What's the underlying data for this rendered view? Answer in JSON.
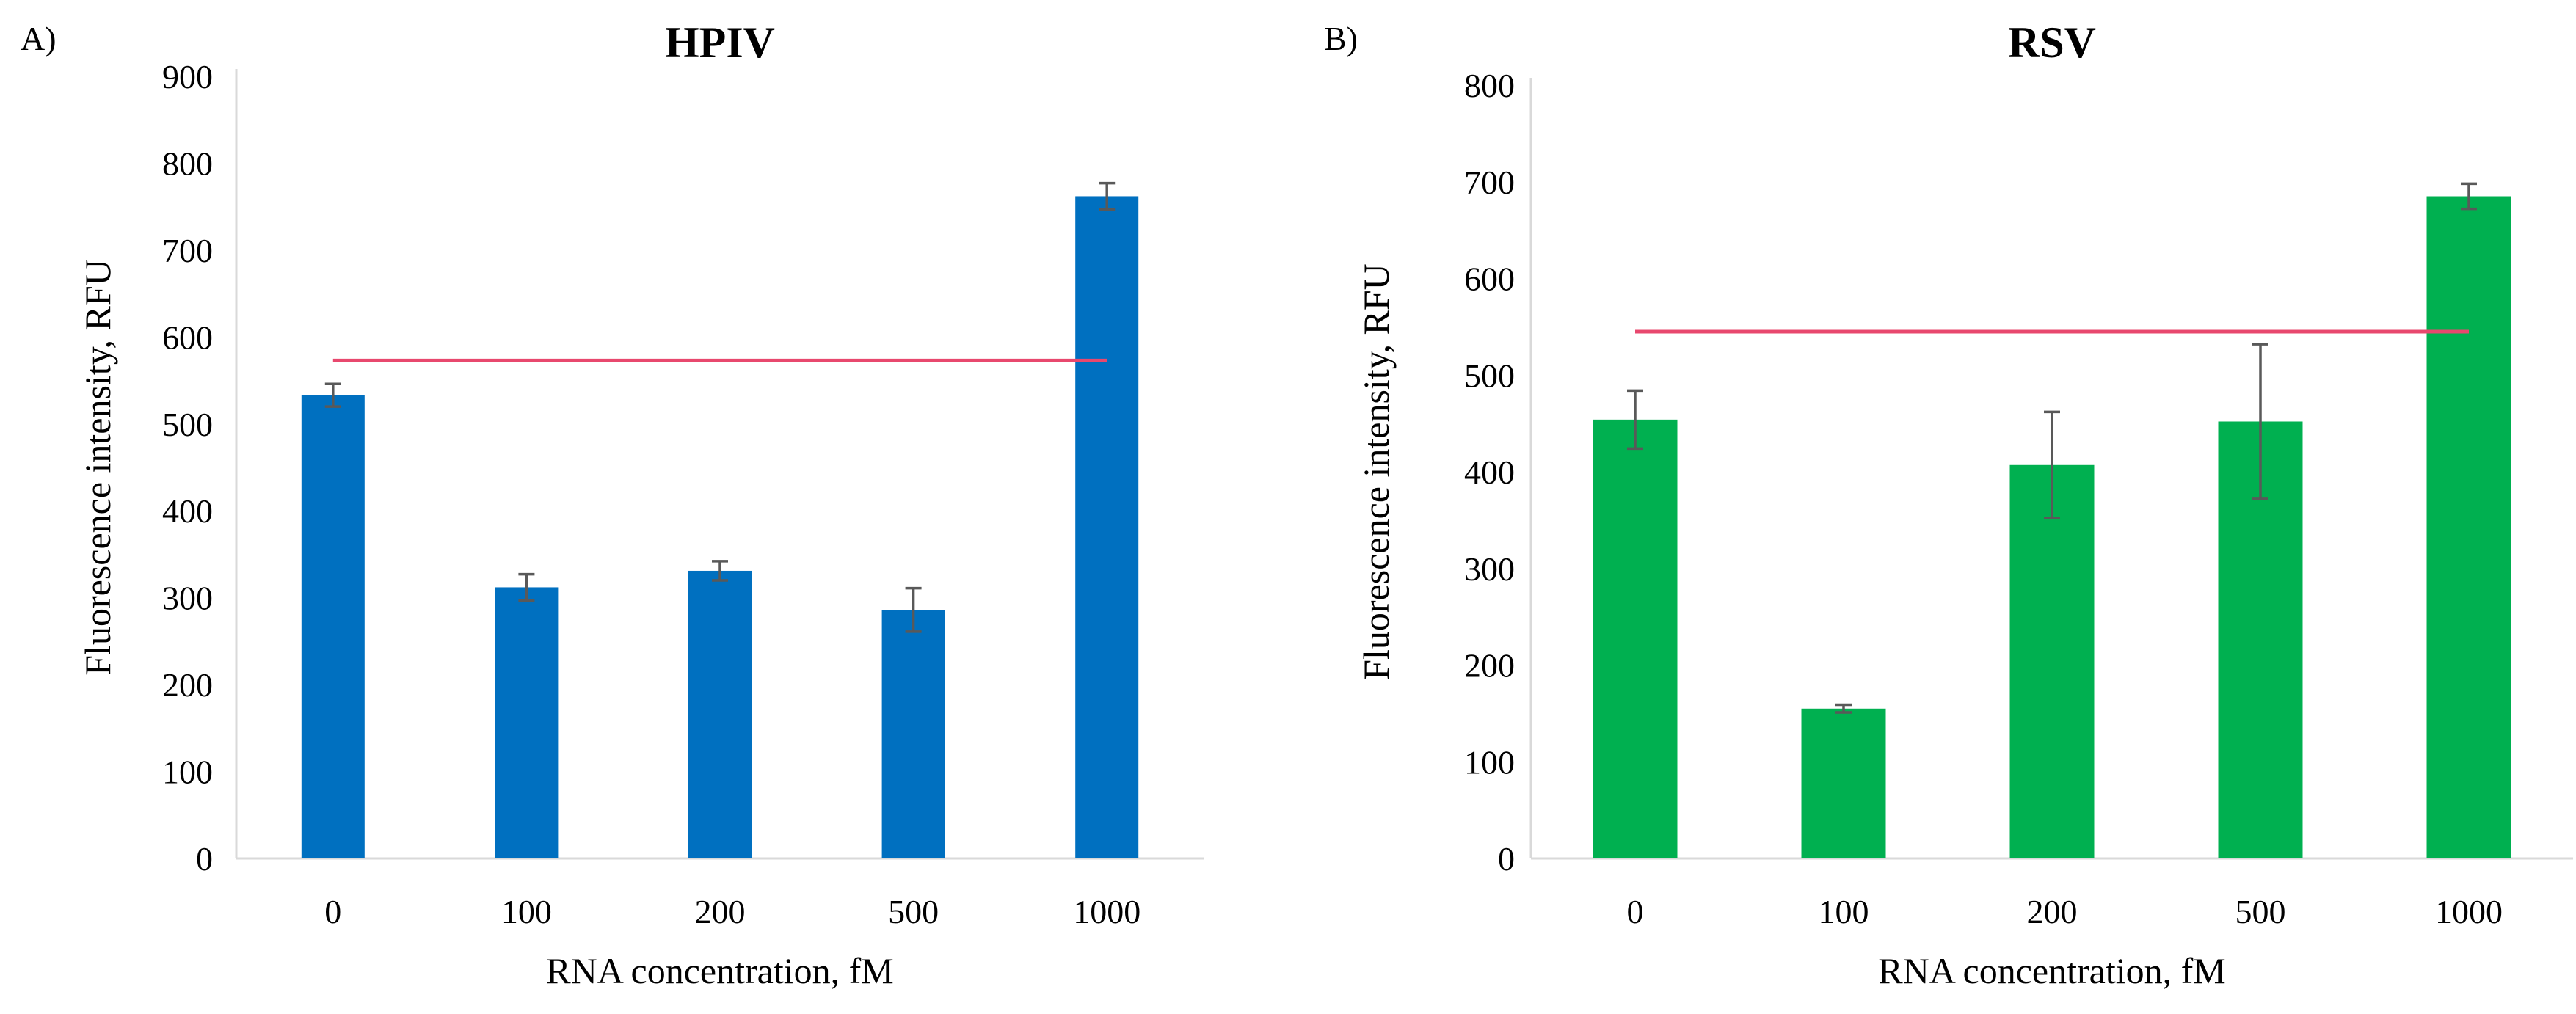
{
  "chart_data": [
    {
      "type": "bar",
      "panel_label": "A)",
      "title": "HPIV",
      "xlabel": "RNA concentration, fM",
      "ylabel": "Fluorescence intensity, RFU",
      "categories": [
        "0",
        "100",
        "200",
        "500",
        "1000"
      ],
      "values": [
        533,
        312,
        331,
        286,
        762
      ],
      "errors": [
        13,
        15,
        11,
        25,
        15
      ],
      "threshold": 573,
      "ylim": [
        0,
        900
      ],
      "yticks": [
        0,
        100,
        200,
        300,
        400,
        500,
        600,
        700,
        800,
        900
      ],
      "ytick_labels": [
        "0",
        "100",
        "200",
        "300",
        "400",
        "500",
        "600",
        "700",
        "800",
        "900"
      ],
      "bar_color": "#0070C0",
      "threshold_color": "#E8486E",
      "grid": false
    },
    {
      "type": "bar",
      "panel_label": "B)",
      "title": "RSV",
      "xlabel": "RNA concentration, fM",
      "ylabel": "Fluorescence intensity, RFU",
      "categories": [
        "0",
        "100",
        "200",
        "500",
        "1000"
      ],
      "values": [
        454,
        155,
        407,
        452,
        685
      ],
      "errors": [
        30,
        4,
        55,
        80,
        13
      ],
      "threshold": 545,
      "ylim": [
        0,
        800
      ],
      "yticks": [
        0,
        100,
        200,
        300,
        400,
        500,
        600,
        700,
        800
      ],
      "ytick_labels": [
        "0",
        "100",
        "200",
        "300",
        "400",
        "500",
        "600",
        "700",
        "800"
      ],
      "bar_color": "#00B050",
      "threshold_color": "#E8486E",
      "grid": false
    }
  ]
}
